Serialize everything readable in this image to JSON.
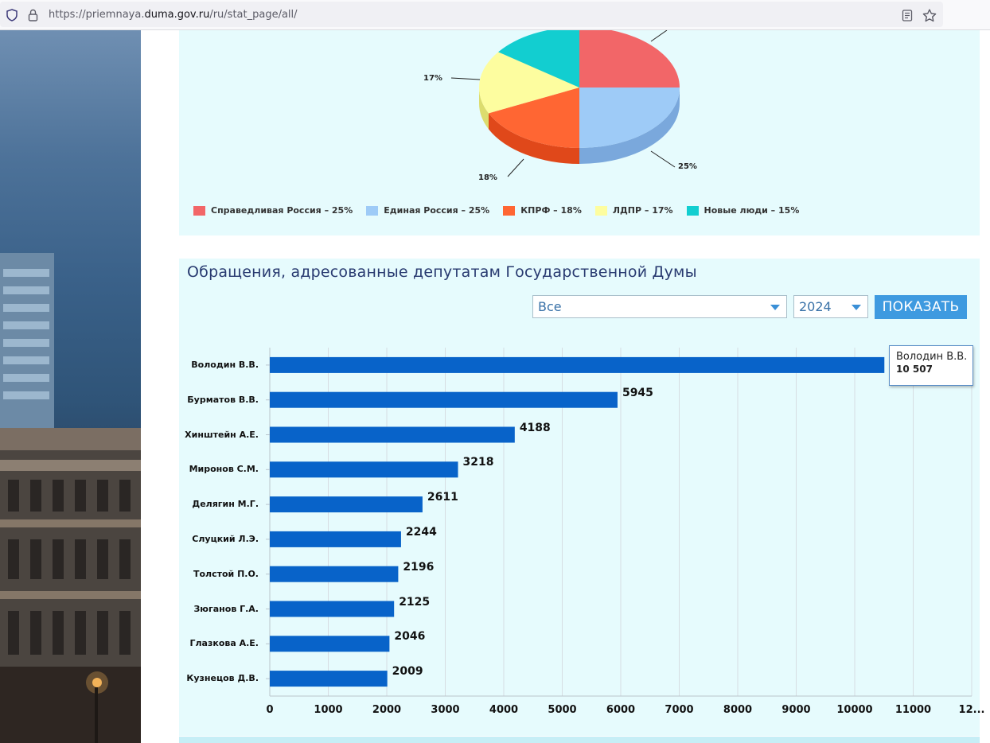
{
  "browser": {
    "url_prefix": "https://priemnaya.",
    "url_host": "duma.gov.ru",
    "url_path": "/ru/stat_page/all/"
  },
  "pie_chart": {
    "slices": [
      {
        "label": "Справедливая Россия",
        "percent": 25,
        "color": "#f26668",
        "side_color": "#c84748"
      },
      {
        "label": "Единая Россия",
        "percent": 25,
        "color": "#9ecbf7",
        "side_color": "#7aa8dc"
      },
      {
        "label": "КПРФ",
        "percent": 18,
        "color": "#ff6633",
        "side_color": "#e0481a"
      },
      {
        "label": "ЛДПР",
        "percent": 17,
        "color": "#fdfd9f",
        "side_color": "#dcdc6e"
      },
      {
        "label": "Новые люди",
        "percent": 15,
        "color": "#12ced0",
        "side_color": "#0fa7a9"
      }
    ],
    "visible_labels": {
      "ldpr": "17%",
      "er": "25%",
      "kprf": "18%"
    },
    "legend": [
      {
        "text": "Справедливая Россия – 25%",
        "color": "#f26668"
      },
      {
        "text": "Единая Россия – 25%",
        "color": "#9ecbf7"
      },
      {
        "text": "КПРФ – 18%",
        "color": "#ff6633"
      },
      {
        "text": "ЛДПР – 17%",
        "color": "#fdfd9f"
      },
      {
        "text": "Новые люди – 15%",
        "color": "#12ced0"
      }
    ]
  },
  "section": {
    "title": "Обращения, адресованные депутатам Государственной Думы"
  },
  "filters": {
    "category_value": "Все",
    "year_value": "2024",
    "show_label": "ПОКАЗАТЬ"
  },
  "chart_data": {
    "type": "bar",
    "orientation": "horizontal",
    "categories": [
      "Володин В.В.",
      "Бурматов В.В.",
      "Хинштейн А.Е.",
      "Миронов С.М.",
      "Делягин М.Г.",
      "Слуцкий Л.Э.",
      "Толстой П.О.",
      "Зюганов Г.А.",
      "Глазкова А.Е.",
      "Кузнецов Д.В."
    ],
    "values": [
      10507,
      5945,
      4188,
      3218,
      2611,
      2244,
      2196,
      2125,
      2046,
      2009
    ],
    "value_labels": [
      "",
      "5945",
      "4188",
      "3218",
      "2611",
      "2244",
      "2196",
      "2125",
      "2046",
      "2009"
    ],
    "xticks": [
      "0",
      "1000",
      "2000",
      "3000",
      "4000",
      "5000",
      "6000",
      "7000",
      "8000",
      "9000",
      "10000",
      "11000",
      "12..."
    ],
    "xlim": [
      0,
      12000
    ],
    "bar_color": "#0863c9",
    "grid": true,
    "tooltip": {
      "name": "Володин В.В.",
      "value": "10 507"
    }
  }
}
